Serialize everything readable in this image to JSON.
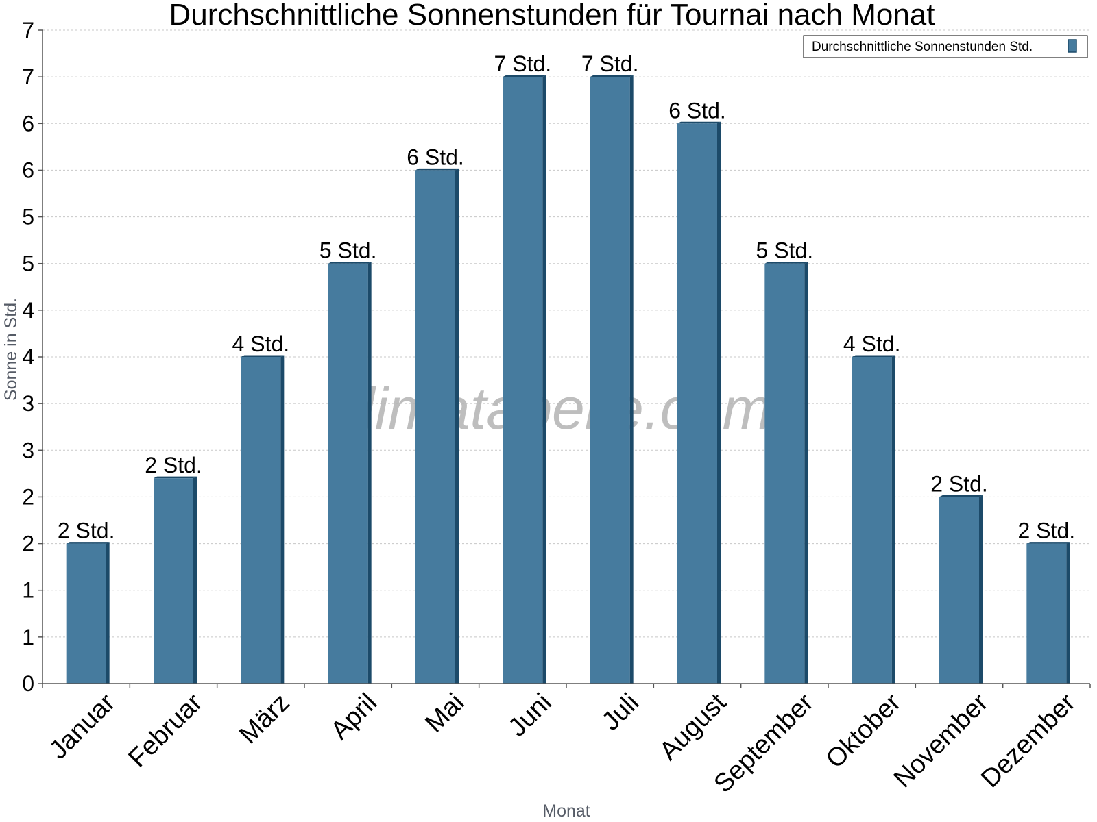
{
  "chart_data": {
    "type": "bar",
    "title": "Durchschnittliche Sonnenstunden für Tournai nach Monat",
    "xlabel": "Monat",
    "ylabel": "Sonne in Std.",
    "categories": [
      "Januar",
      "Februar",
      "März",
      "April",
      "Mai",
      "Juni",
      "Juli",
      "August",
      "September",
      "Oktober",
      "November",
      "Dezember"
    ],
    "series": [
      {
        "name": "Durchschnittliche Sonnenstunden Std.",
        "values": [
          1.5,
          2.2,
          3.5,
          4.5,
          5.5,
          6.5,
          6.5,
          6.0,
          4.5,
          3.5,
          2.0,
          1.5
        ],
        "data_labels": [
          "2 Std.",
          "2 Std.",
          "4 Std.",
          "5 Std.",
          "6 Std.",
          "7 Std.",
          "7 Std.",
          "6 Std.",
          "5 Std.",
          "4 Std.",
          "2 Std.",
          "2 Std."
        ]
      }
    ],
    "ylim": [
      0,
      7
    ],
    "yticks": [
      0,
      0.5,
      1,
      1.5,
      2,
      2.5,
      3,
      3.5,
      4,
      4.5,
      5,
      5.5,
      6,
      6.5,
      7
    ],
    "ytick_labels": [
      "0",
      "1",
      "1",
      "2",
      "2",
      "3",
      "3",
      "4",
      "4",
      "5",
      "5",
      "6",
      "6",
      "7",
      "7"
    ],
    "grid": true,
    "legend_position": "top-right",
    "colors": {
      "bar": "#467b9e",
      "bar_side": "#1c4a69",
      "bar_top": "#2f6386",
      "grid": "#c8c8c8",
      "axis": "#555555"
    }
  },
  "watermark": "klimatabelle.com"
}
